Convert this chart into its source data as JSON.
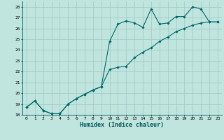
{
  "xlabel": "Humidex (Indice chaleur)",
  "ylabel": "",
  "xlim": [
    -0.5,
    23.5
  ],
  "ylim": [
    18,
    28.5
  ],
  "yticks": [
    18,
    19,
    20,
    21,
    22,
    23,
    24,
    25,
    26,
    27,
    28
  ],
  "xticks": [
    0,
    1,
    2,
    3,
    4,
    5,
    6,
    7,
    8,
    9,
    10,
    11,
    12,
    13,
    14,
    15,
    16,
    17,
    18,
    19,
    20,
    21,
    22,
    23
  ],
  "bg_color": "#c0e4de",
  "grid_color": "#a0c8c4",
  "line_color": "#006868",
  "series1_x": [
    0,
    1,
    2,
    3,
    4,
    5,
    6,
    7,
    8,
    9,
    10,
    11,
    12,
    13,
    14,
    15,
    16,
    17,
    18,
    19,
    20,
    21,
    22,
    23
  ],
  "series1_y": [
    18.7,
    19.3,
    18.4,
    18.1,
    18.1,
    19.0,
    19.5,
    19.9,
    20.3,
    20.6,
    24.8,
    26.4,
    26.7,
    26.5,
    26.1,
    27.8,
    26.4,
    26.5,
    27.1,
    27.1,
    28.0,
    27.8,
    26.6,
    26.6
  ],
  "series2_x": [
    0,
    1,
    2,
    3,
    4,
    5,
    6,
    7,
    8,
    9,
    10,
    11,
    12,
    13,
    14,
    15,
    16,
    17,
    18,
    19,
    20,
    21,
    22,
    23
  ],
  "series2_y": [
    18.7,
    19.3,
    18.4,
    18.1,
    18.1,
    19.0,
    19.5,
    19.9,
    20.3,
    20.6,
    22.2,
    22.4,
    22.5,
    23.3,
    23.8,
    24.2,
    24.8,
    25.2,
    25.7,
    26.0,
    26.3,
    26.5,
    26.6,
    26.6
  ],
  "marker_size": 1.8,
  "line_width": 0.8,
  "tick_fontsize": 4.5,
  "xlabel_fontsize": 6.0
}
